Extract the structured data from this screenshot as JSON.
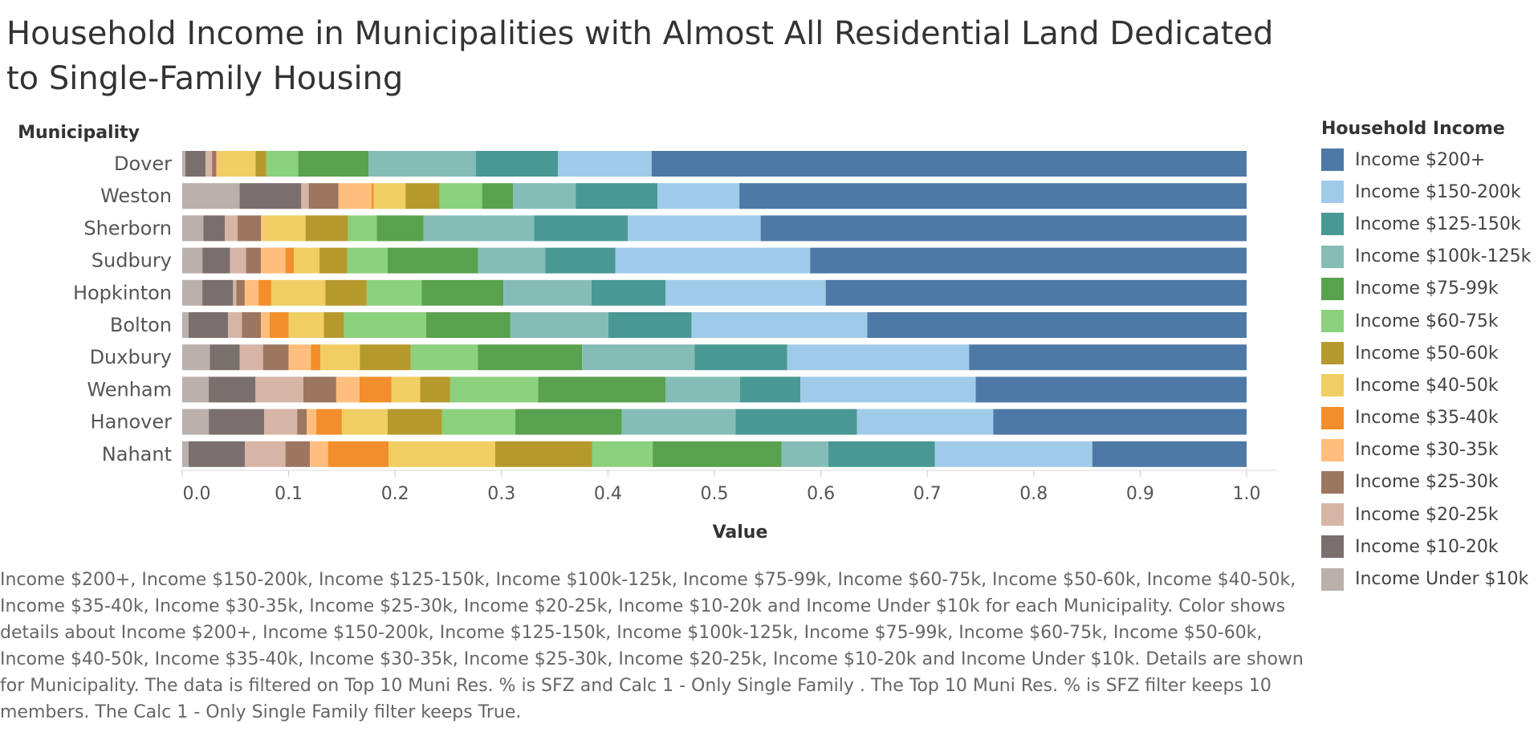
{
  "title": "Household Income in Municipalities with Almost All Residential Land Dedicated to Single-Family Housing",
  "legend_title": "Household Income",
  "caption": "Income $200+, Income $150-200k, Income $125-150k, Income $100k-125k, Income $75-99k, Income $60-75k, Income $50-60k, Income $40-50k, Income $35-40k, Income $30-35k, Income $25-30k, Income $20-25k, Income $10-20k and Income Under $10k for each Municipality.  Color shows details about Income $200+, Income $150-200k, Income $125-150k, Income $100k-125k, Income $75-99k, Income $60-75k, Income $50-60k, Income $40-50k, Income $35-40k, Income $30-35k, Income $25-30k, Income $20-25k, Income $10-20k and Income Under $10k.  Details are shown for Municipality. The data is filtered on Top 10 Muni Res. % is SFZ  and Calc 1 - Only Single Family  . The Top 10 Muni Res. % is SFZ  filter keeps 10 members. The Calc 1 - Only Single Family   filter keeps True.",
  "chart_data": {
    "type": "bar",
    "orientation": "horizontal",
    "stacked": true,
    "title": "Household Income in Municipalities with Almost All Residential Land Dedicated to Single-Family Housing",
    "xlabel": "Value",
    "ylabel": "Municipality",
    "xlim": [
      0,
      1
    ],
    "xticks": [
      "0.0",
      "0.1",
      "0.2",
      "0.3",
      "0.4",
      "0.5",
      "0.6",
      "0.7",
      "0.8",
      "0.9",
      "1.0"
    ],
    "xtick_values": [
      0,
      0.1,
      0.2,
      0.3,
      0.4,
      0.5,
      0.6,
      0.7,
      0.8,
      0.9,
      1.0
    ],
    "legend_position": "right",
    "grid": false,
    "categories": [
      "Dover",
      "Weston",
      "Sherborn",
      "Sudbury",
      "Hopkinton",
      "Bolton",
      "Duxbury",
      "Wenham",
      "Hanover",
      "Nahant"
    ],
    "series": [
      {
        "name": "Income Under $10k",
        "color": "#bab0ac",
        "values": [
          0.003,
          0.054,
          0.02,
          0.019,
          0.019,
          0.006,
          0.026,
          0.025,
          0.025,
          0.006
        ]
      },
      {
        "name": "Income $10-20k",
        "color": "#79706e",
        "values": [
          0.019,
          0.058,
          0.02,
          0.026,
          0.029,
          0.037,
          0.028,
          0.044,
          0.052,
          0.053
        ]
      },
      {
        "name": "Income $20-25k",
        "color": "#d7b5a6",
        "values": [
          0.006,
          0.007,
          0.012,
          0.015,
          0.003,
          0.013,
          0.022,
          0.045,
          0.031,
          0.038
        ]
      },
      {
        "name": "Income $25-30k",
        "color": "#9d7660",
        "values": [
          0.004,
          0.028,
          0.022,
          0.014,
          0.008,
          0.018,
          0.024,
          0.031,
          0.009,
          0.023
        ]
      },
      {
        "name": "Income $30-35k",
        "color": "#ffbe7d",
        "values": [
          0.002,
          0.031,
          0.002,
          0.023,
          0.013,
          0.008,
          0.021,
          0.022,
          0.009,
          0.017
        ]
      },
      {
        "name": "Income $35-40k",
        "color": "#f28e2b",
        "values": [
          0.0,
          0.002,
          0.0,
          0.008,
          0.012,
          0.018,
          0.009,
          0.03,
          0.024,
          0.057
        ]
      },
      {
        "name": "Income $40-50k",
        "color": "#f1ce63",
        "values": [
          0.035,
          0.03,
          0.04,
          0.024,
          0.051,
          0.033,
          0.037,
          0.027,
          0.043,
          0.1
        ]
      },
      {
        "name": "Income $50-60k",
        "color": "#b6992d",
        "values": [
          0.01,
          0.032,
          0.04,
          0.026,
          0.039,
          0.019,
          0.048,
          0.028,
          0.051,
          0.091
        ]
      },
      {
        "name": "Income $60-75k",
        "color": "#8cd17d",
        "values": [
          0.03,
          0.04,
          0.027,
          0.038,
          0.052,
          0.077,
          0.063,
          0.083,
          0.069,
          0.057
        ]
      },
      {
        "name": "Income $75-99k",
        "color": "#59a14f",
        "values": [
          0.066,
          0.029,
          0.044,
          0.085,
          0.077,
          0.079,
          0.098,
          0.12,
          0.1,
          0.121
        ]
      },
      {
        "name": "Income $100k-125k",
        "color": "#86bcb6",
        "values": [
          0.101,
          0.059,
          0.104,
          0.063,
          0.083,
          0.092,
          0.106,
          0.07,
          0.107,
          0.044
        ]
      },
      {
        "name": "Income $125-150k",
        "color": "#499894",
        "values": [
          0.077,
          0.077,
          0.088,
          0.066,
          0.07,
          0.078,
          0.087,
          0.057,
          0.114,
          0.1
        ]
      },
      {
        "name": "Income $150-200k",
        "color": "#a0cbe8",
        "values": [
          0.088,
          0.077,
          0.125,
          0.183,
          0.151,
          0.165,
          0.171,
          0.165,
          0.128,
          0.148
        ]
      },
      {
        "name": "Income $200+",
        "color": "#4e79a7",
        "values": [
          0.559,
          0.477,
          0.457,
          0.41,
          0.397,
          0.356,
          0.261,
          0.255,
          0.238,
          0.145
        ]
      }
    ]
  }
}
